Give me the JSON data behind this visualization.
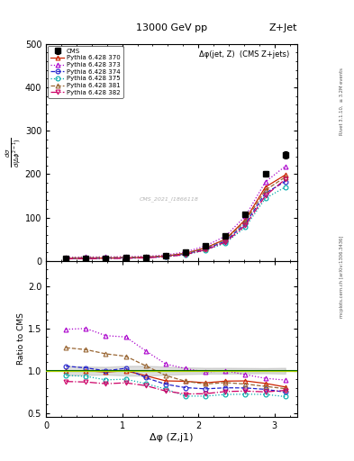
{
  "title_top": "13000 GeV pp",
  "title_right": "Z+Jet",
  "plot_title": "Δφ(jet, Z)  (CMS Z+jets)",
  "xlabel": "Δφ (Z,j1)",
  "ylabel_ratio": "Ratio to CMS",
  "watermark": "CMS_2021_I1866118",
  "rivet_label": "Rivet 3.1.10,  ≥ 3.2M events",
  "arxiv_label": "mcplots.cern.ch [arXiv:1306.3436]",
  "cms_x": [
    0.2618,
    0.5236,
    0.7854,
    1.0472,
    1.309,
    1.5708,
    1.8326,
    2.0944,
    2.3562,
    2.618,
    2.8798,
    3.1416
  ],
  "cms_y": [
    5.5,
    6.0,
    6.5,
    7.0,
    8.5,
    12.5,
    20.0,
    35.0,
    57.0,
    108.0,
    200.0,
    245.0
  ],
  "cms_yerr": [
    0.3,
    0.3,
    0.3,
    0.4,
    0.5,
    0.6,
    0.8,
    1.2,
    2.0,
    3.5,
    6.0,
    8.5
  ],
  "x_common": [
    0.2618,
    0.5236,
    0.7854,
    1.0472,
    1.309,
    1.5708,
    1.8326,
    2.0944,
    2.3562,
    2.618,
    2.8798,
    3.1416
  ],
  "p370_y": [
    5.5,
    6.0,
    6.4,
    7.0,
    8.0,
    11.0,
    17.5,
    30.0,
    50.0,
    95.0,
    170.0,
    198.0
  ],
  "p373_y": [
    8.2,
    9.0,
    9.2,
    9.8,
    10.5,
    13.5,
    20.5,
    34.5,
    57.0,
    103.0,
    182.0,
    218.0
  ],
  "p374_y": [
    5.8,
    6.2,
    6.5,
    7.2,
    7.8,
    10.5,
    16.0,
    27.5,
    45.5,
    86.0,
    156.0,
    183.0
  ],
  "p375_y": [
    5.2,
    5.6,
    5.8,
    6.3,
    7.2,
    9.8,
    14.0,
    24.5,
    41.0,
    78.0,
    144.0,
    170.0
  ],
  "p381_y": [
    7.0,
    7.5,
    7.8,
    8.2,
    9.0,
    11.8,
    17.5,
    29.5,
    49.0,
    91.0,
    163.0,
    193.0
  ],
  "p382_y": [
    4.8,
    5.2,
    5.5,
    6.0,
    7.0,
    9.5,
    14.5,
    25.5,
    43.0,
    82.0,
    150.0,
    188.0
  ],
  "colors": {
    "cms": "#000000",
    "p370": "#cc2200",
    "p373": "#aa00cc",
    "p374": "#2222cc",
    "p375": "#00aaaa",
    "p381": "#996633",
    "p382": "#cc0066"
  },
  "ylim_main": [
    0,
    500
  ],
  "ylim_ratio": [
    0.45,
    2.3
  ],
  "xlim": [
    0.0,
    3.3
  ],
  "yticks_main": [
    0,
    100,
    200,
    300,
    400,
    500
  ],
  "yticks_ratio": [
    0.5,
    1.0,
    1.5,
    2.0
  ]
}
